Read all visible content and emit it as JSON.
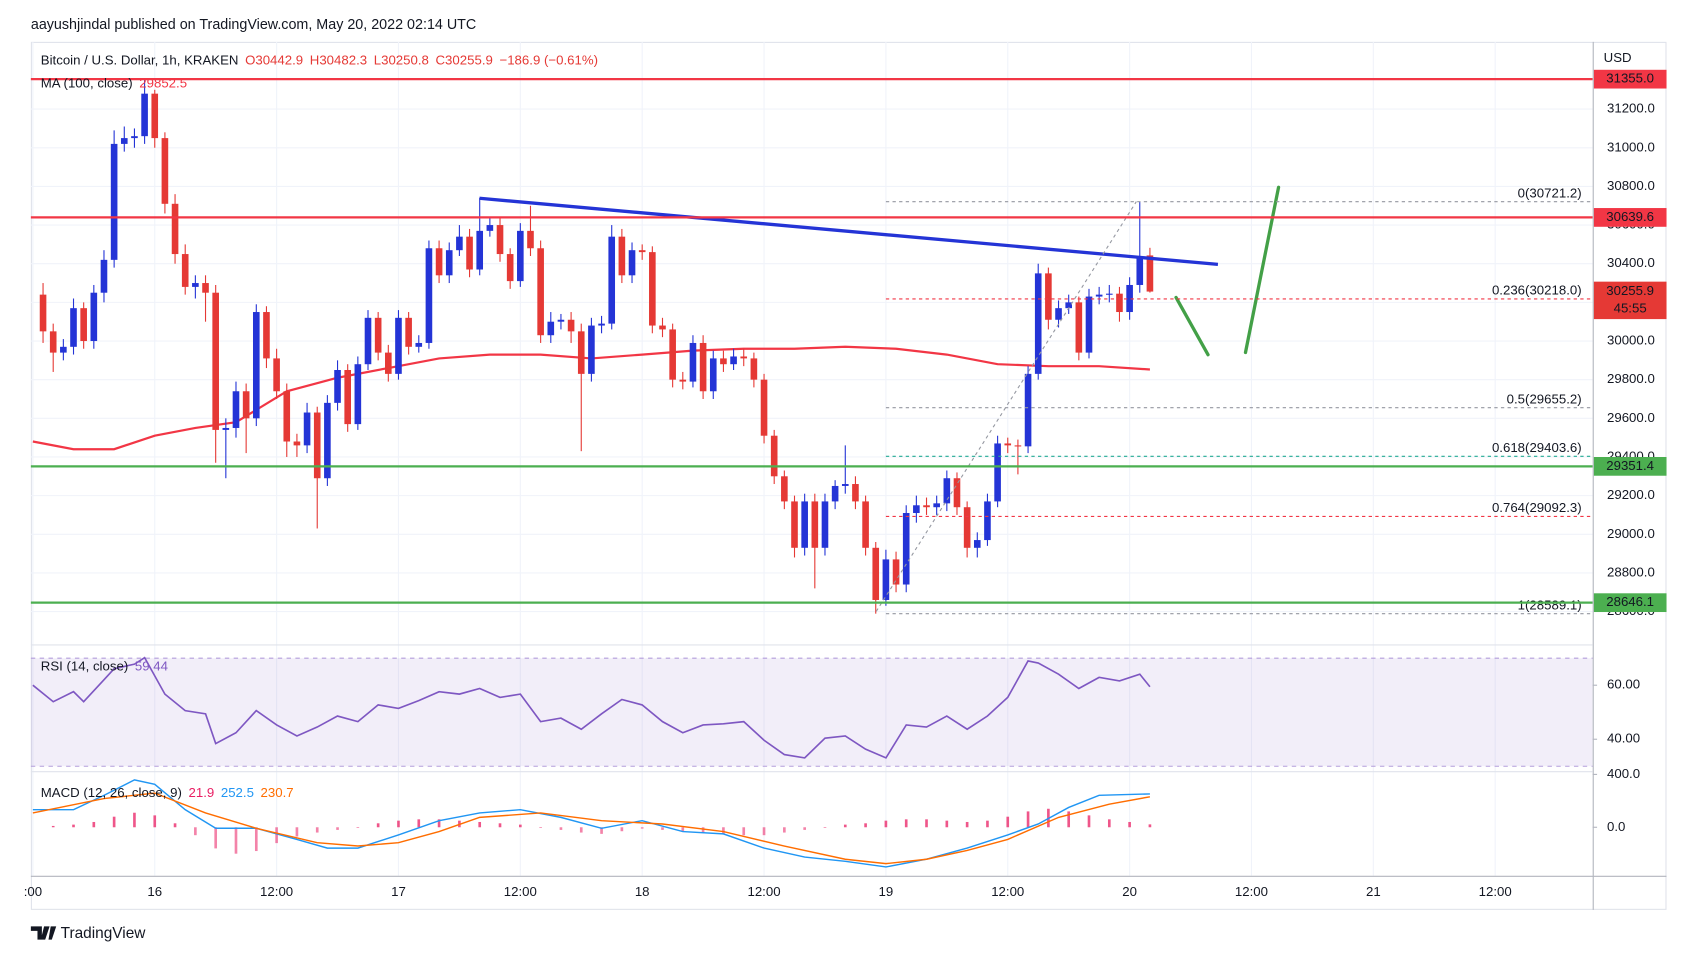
{
  "header": {
    "published": "aayushjindal published on TradingView.com, May 20, 2022 02:14 UTC",
    "logo": "TradingView"
  },
  "chart_data": [
    {
      "type": "candlestick",
      "symbol": "Bitcoin / U.S. Dollar, 1h, KRAKEN",
      "ohlc": [
        "O30442.9",
        "H30482.3",
        "L30250.8",
        "C30255.9"
      ],
      "change": "−186.9 (−0.61%)",
      "currency": "USD",
      "up_color": "#2434d6",
      "down_color": "#e53935",
      "x": [
        1,
        2,
        3,
        4,
        5,
        6,
        7,
        8,
        9,
        10,
        11,
        12,
        13,
        14,
        15,
        16,
        17,
        18,
        19,
        20,
        21,
        22,
        23,
        24,
        25,
        26,
        27,
        28,
        29,
        30,
        31,
        32,
        33,
        34,
        35,
        36,
        37,
        38,
        39,
        40,
        41,
        42,
        43,
        44,
        45,
        46,
        47,
        48,
        49,
        50,
        51,
        52,
        53,
        54,
        55,
        56,
        57,
        58,
        59,
        60,
        61,
        62,
        63,
        64,
        65,
        66,
        67,
        68,
        69,
        70,
        71,
        72,
        73,
        74,
        75,
        76,
        77,
        78,
        79,
        80,
        81,
        82,
        83,
        84,
        85,
        86,
        87,
        88,
        89,
        90,
        91,
        92,
        93,
        94,
        95,
        96,
        97,
        98,
        99,
        100,
        101,
        102,
        103,
        104,
        105,
        106,
        107,
        108,
        109,
        110
      ],
      "open": [
        30240,
        30050,
        29940,
        29970,
        30170,
        30000,
        30250,
        30420,
        31020,
        31050,
        31060,
        31280,
        31050,
        30710,
        30450,
        30280,
        30300,
        30250,
        29540,
        29550,
        29740,
        29600,
        30150,
        29910,
        29740,
        29480,
        29460,
        29630,
        29290,
        29680,
        29850,
        29570,
        29880,
        30120,
        29940,
        29830,
        30120,
        29970,
        29990,
        30480,
        30340,
        30470,
        30540,
        30370,
        30570,
        30600,
        30450,
        30310,
        30570,
        30480,
        30030,
        30100,
        30110,
        30050,
        29830,
        30080,
        30090,
        30540,
        30340,
        30470,
        30460,
        30080,
        30060,
        29800,
        29790,
        29990,
        29740,
        29910,
        29880,
        29920,
        29910,
        29800,
        29510,
        29300,
        29170,
        28930,
        29170,
        28930,
        29170,
        29250,
        29260,
        29170,
        28930,
        28660,
        28870,
        28740,
        29110,
        29150,
        29140,
        29160,
        29290,
        29140,
        28930,
        28970,
        29170,
        29470,
        29460,
        29455,
        29830,
        30350,
        30110,
        30170,
        30200,
        29940,
        30230,
        30240,
        30245,
        30150,
        30290,
        30442.9
      ],
      "high": [
        30300,
        30090,
        30010,
        30220,
        30200,
        30290,
        30470,
        31090,
        31110,
        31100,
        31355,
        31300,
        31080,
        30760,
        30500,
        30340,
        30340,
        30290,
        29600,
        29790,
        29780,
        30190,
        30180,
        29960,
        29780,
        29520,
        29680,
        29660,
        29720,
        29900,
        29880,
        29920,
        30160,
        30150,
        29980,
        30160,
        30150,
        30030,
        30520,
        30520,
        30510,
        30600,
        30580,
        30740,
        30640,
        30640,
        30480,
        30610,
        30700,
        30520,
        30150,
        30140,
        30150,
        30090,
        30120,
        30130,
        30600,
        30580,
        30510,
        30500,
        30490,
        30120,
        30090,
        29840,
        30030,
        30030,
        29950,
        29950,
        29960,
        29960,
        29940,
        29830,
        29540,
        29330,
        29200,
        29210,
        29210,
        29210,
        29280,
        29460,
        29300,
        29200,
        28960,
        28920,
        28910,
        29150,
        29200,
        29190,
        29200,
        29330,
        29320,
        29170,
        29010,
        29210,
        29510,
        29500,
        29490,
        29870,
        30400,
        30380,
        30210,
        30240,
        30230,
        30270,
        30280,
        30290,
        30280,
        30330,
        30721.2,
        30482.3
      ],
      "low": [
        29990,
        29840,
        29900,
        29930,
        29960,
        29960,
        30200,
        30380,
        30980,
        31000,
        31020,
        31000,
        30660,
        30400,
        30240,
        30220,
        30100,
        29370,
        29290,
        29500,
        29420,
        29560,
        29860,
        29700,
        29400,
        29400,
        29420,
        29030,
        29250,
        29640,
        29530,
        29540,
        29850,
        29900,
        29790,
        29800,
        29930,
        29940,
        29960,
        30300,
        30300,
        30440,
        30330,
        30340,
        30540,
        30410,
        30270,
        30280,
        30440,
        29990,
        29990,
        30060,
        29990,
        29430,
        29790,
        30040,
        30060,
        30300,
        30300,
        30420,
        30040,
        30020,
        29760,
        29750,
        29760,
        29700,
        29700,
        29840,
        29850,
        29870,
        29760,
        29470,
        29260,
        29130,
        28880,
        28890,
        28720,
        28890,
        29130,
        29210,
        29130,
        28890,
        28589.1,
        28630,
        28700,
        28700,
        29060,
        29100,
        29100,
        29120,
        29100,
        28880,
        28880,
        28940,
        29140,
        29420,
        29310,
        29420,
        29800,
        30060,
        30070,
        30140,
        29900,
        29910,
        30190,
        30200,
        30100,
        30110,
        30250,
        30250.8
      ],
      "close": [
        30050,
        29940,
        29970,
        30170,
        30000,
        30250,
        30420,
        31020,
        31050,
        31060,
        31280,
        31050,
        30710,
        30450,
        30280,
        30300,
        30250,
        29540,
        29550,
        29740,
        29600,
        30150,
        29910,
        29740,
        29480,
        29460,
        29630,
        29290,
        29680,
        29850,
        29570,
        29880,
        30120,
        29940,
        29830,
        30120,
        29970,
        29990,
        30480,
        30340,
        30470,
        30540,
        30370,
        30570,
        30600,
        30450,
        30310,
        30570,
        30480,
        30030,
        30100,
        30110,
        30050,
        29830,
        30080,
        30090,
        30540,
        30340,
        30470,
        30460,
        30080,
        30060,
        29800,
        29790,
        29990,
        29740,
        29910,
        29880,
        29920,
        29910,
        29800,
        29510,
        29300,
        29170,
        28930,
        29170,
        28930,
        29170,
        29250,
        29260,
        29170,
        28930,
        28660,
        28870,
        28740,
        29110,
        29150,
        29140,
        29160,
        29290,
        29140,
        28930,
        28970,
        29170,
        29470,
        29460,
        29455,
        29830,
        30350,
        30110,
        30170,
        30200,
        29940,
        30230,
        30240,
        30245,
        30150,
        30290,
        30440,
        30255.9
      ],
      "ma": {
        "name": "MA (100, close)",
        "color": "#f23645",
        "x": [
          0,
          4,
          8,
          12,
          16,
          20,
          25,
          30,
          35,
          40,
          45,
          50,
          55,
          60,
          65,
          70,
          75,
          80,
          85,
          90,
          95,
          100,
          105,
          110
        ],
        "values": [
          29480,
          29440,
          29440,
          29510,
          29550,
          29580,
          29740,
          29810,
          29860,
          29910,
          29930,
          29930,
          29910,
          29930,
          29950,
          29960,
          29960,
          29970,
          29960,
          29930,
          29880,
          29870,
          29870,
          29852.5
        ]
      },
      "levels": [
        {
          "value": 31355,
          "label": "31355.0",
          "color": "#f23645"
        },
        {
          "value": 30639.6,
          "color": "#f23645"
        },
        {
          "value": 29351.4,
          "color": "#4caf50"
        },
        {
          "value": 28646.1,
          "color": "#4caf50"
        }
      ],
      "fib": [
        {
          "label": "0(30721.2)",
          "value": 30721.2,
          "color": "#9598a1"
        },
        {
          "label": "0.236(30218.0)",
          "value": 30218,
          "color": "#f23645"
        },
        {
          "label": "0.5(29655.2)",
          "value": 29655.2,
          "color": "#9598a1"
        },
        {
          "label": "0.618(29403.6)",
          "value": 29403.6,
          "color": "#22ab94"
        },
        {
          "label": "0.764(29092.3)",
          "value": 29092.3,
          "color": "#f23645"
        },
        {
          "label": "1(28589.1)",
          "value": 28589.1,
          "color": "#9598a1"
        }
      ],
      "countdown": "45:55",
      "xlim": [
        -0.2,
        153.6
      ],
      "xticks": [
        {
          "value": 0,
          "label": ":00"
        },
        {
          "value": 12,
          "label": "16"
        },
        {
          "value": 24,
          "label": "12:00"
        },
        {
          "value": 36,
          "label": "17"
        },
        {
          "value": 48,
          "label": "12:00"
        },
        {
          "value": 60,
          "label": "18"
        },
        {
          "value": 72,
          "label": "12:00"
        },
        {
          "value": 84,
          "label": "19"
        },
        {
          "value": 96,
          "label": "12:00"
        },
        {
          "value": 108,
          "label": "20"
        },
        {
          "value": 120,
          "label": "12:00"
        },
        {
          "value": 132,
          "label": "21"
        },
        {
          "value": 144,
          "label": "12:00"
        }
      ],
      "ylim": [
        28430,
        31548
      ],
      "yticks": [
        {
          "value": 28600,
          "label": "28600.0"
        },
        {
          "value": 28800,
          "label": "28800.0"
        },
        {
          "value": 29000,
          "label": "29000.0"
        },
        {
          "value": 29200,
          "label": "29200.0"
        },
        {
          "value": 29400,
          "label": "29400.0"
        },
        {
          "value": 29600,
          "label": "29600.0"
        },
        {
          "value": 29800,
          "label": "29800.0"
        },
        {
          "value": 30000,
          "label": "30000.0"
        },
        {
          "value": 30200,
          "label": "30200.0"
        },
        {
          "value": 30400,
          "label": "30400.0"
        },
        {
          "value": 30600,
          "label": "30600.0"
        },
        {
          "value": 30800,
          "label": "30800.0"
        },
        {
          "value": 31000,
          "label": "31000.0"
        },
        {
          "value": 31200,
          "label": "31200.0"
        }
      ],
      "grid": true
    },
    {
      "type": "rsi",
      "name": "RSI (14, close)",
      "color": "#7e57c2",
      "band": [
        30,
        70
      ],
      "x": [
        0,
        2,
        4,
        5,
        7,
        8,
        10,
        11,
        13,
        15,
        17,
        18,
        20,
        22,
        24,
        26,
        28,
        30,
        32,
        34,
        36,
        38,
        40,
        42,
        44,
        46,
        48,
        50,
        52,
        54,
        56,
        58,
        60,
        62,
        64,
        66,
        68,
        70,
        72,
        74,
        76,
        78,
        80,
        82,
        84,
        86,
        88,
        90,
        92,
        94,
        96,
        98,
        99,
        101,
        103,
        105,
        107,
        109,
        110
      ],
      "values": [
        60.0,
        53.9,
        57.6,
        53.9,
        62.0,
        66.1,
        67.8,
        70.2,
        56.7,
        50.6,
        49.4,
        38.4,
        42.4,
        50.6,
        45.3,
        41.2,
        44.5,
        48.6,
        46.5,
        52.7,
        51.4,
        54.3,
        57.6,
        56.7,
        58.8,
        55.5,
        56.7,
        46.5,
        47.8,
        43.7,
        49.4,
        54.7,
        52.7,
        46.5,
        42.4,
        45.3,
        45.7,
        46.5,
        39.6,
        34.3,
        33.1,
        40.4,
        41.2,
        36.3,
        33.1,
        45.3,
        44.5,
        48.6,
        43.7,
        48.6,
        55.5,
        69.0,
        68.2,
        64.1,
        58.8,
        62.9,
        61.6,
        64.1,
        59.44
      ],
      "ylim": [
        28.2,
        75.1
      ],
      "yticks": [
        {
          "value": 40,
          "label": "40.00"
        },
        {
          "value": 60,
          "label": "60.00"
        }
      ]
    },
    {
      "type": "macd",
      "name": "MACD (12, 26, close, 9)",
      "histogram": {
        "color": "#e91e63",
        "x": [
          2,
          4,
          6,
          8,
          10,
          12,
          14,
          16,
          18,
          20,
          22,
          24,
          26,
          28,
          30,
          32,
          34,
          36,
          38,
          40,
          42,
          44,
          46,
          48,
          50,
          52,
          54,
          56,
          58,
          60,
          62,
          64,
          66,
          68,
          70,
          72,
          74,
          76,
          78,
          80,
          82,
          84,
          86,
          88,
          90,
          92,
          94,
          96,
          98,
          100,
          102,
          104,
          106,
          108,
          110
        ],
        "values": [
          10,
          20,
          40,
          80,
          110,
          90,
          30,
          -60,
          -160,
          -200,
          -180,
          -120,
          -70,
          -40,
          -20,
          0,
          30,
          50,
          60,
          60,
          50,
          40,
          30,
          20,
          0,
          -20,
          -40,
          -50,
          -30,
          -10,
          -20,
          -30,
          -40,
          -50,
          -60,
          -60,
          -40,
          -20,
          0,
          20,
          30,
          50,
          60,
          60,
          50,
          40,
          50,
          80,
          120,
          140,
          120,
          90,
          60,
          40,
          21.9
        ]
      },
      "macd": {
        "color": "#2196f3",
        "x": [
          0,
          4,
          7,
          10,
          12,
          15,
          18,
          22,
          26,
          29,
          32,
          36,
          40,
          44,
          48,
          52,
          56,
          60,
          64,
          68,
          72,
          76,
          80,
          84,
          88,
          92,
          96,
          99,
          102,
          105,
          110
        ],
        "values": [
          133,
          133,
          242,
          358,
          325,
          133,
          -8,
          -8,
          -92,
          -158,
          -158,
          -58,
          50,
          108,
          133,
          75,
          -8,
          50,
          -33,
          -50,
          -158,
          -225,
          -258,
          -300,
          -242,
          -158,
          -58,
          25,
          150,
          242,
          252.5
        ]
      },
      "signal": {
        "color": "#ff6d00",
        "x": [
          0,
          7,
          12,
          17,
          22,
          28,
          32,
          36,
          40,
          44,
          50,
          56,
          62,
          68,
          74,
          80,
          84,
          88,
          92,
          96,
          101,
          106,
          110
        ],
        "values": [
          108,
          217,
          258,
          108,
          -8,
          -117,
          -142,
          -117,
          -33,
          75,
          108,
          50,
          25,
          -33,
          -142,
          -242,
          -275,
          -242,
          -175,
          -92,
          75,
          175,
          230.7
        ]
      },
      "ylim": [
        -367,
        425
      ],
      "yticks": [
        {
          "value": 0,
          "label": "0.0"
        },
        {
          "value": 400,
          "label": "400.0"
        }
      ]
    }
  ]
}
